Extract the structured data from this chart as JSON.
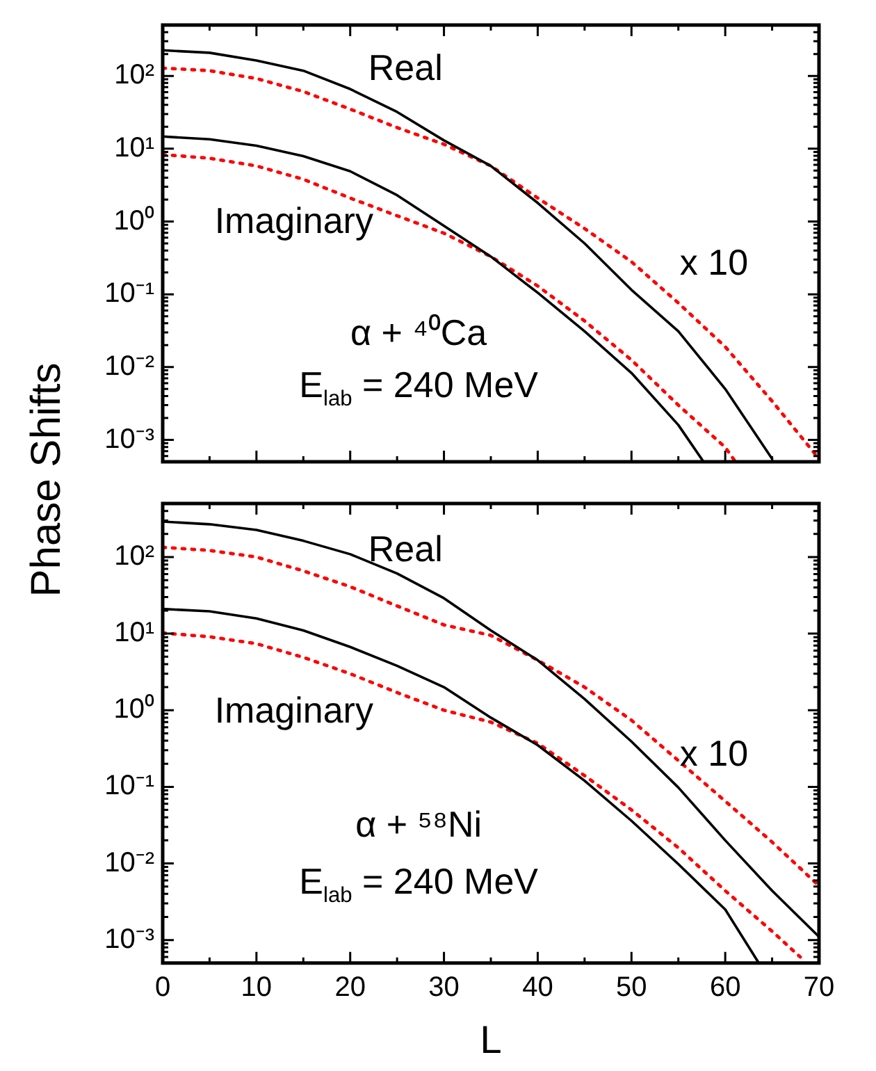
{
  "chart_data": [
    {
      "type": "line",
      "ylabel": "Phase Shifts",
      "log": "y",
      "grid": false,
      "tick_labels": "y",
      "xlim": [
        0,
        70
      ],
      "ylim": [
        0.0005,
        500
      ],
      "xticks": [
        0,
        {
          "value": 5,
          "label": null
        },
        10,
        {
          "value": 15,
          "label": null
        },
        20,
        {
          "value": 25,
          "label": null
        },
        30,
        {
          "value": 35,
          "label": null
        },
        40,
        {
          "value": 45,
          "label": null
        },
        50,
        {
          "value": 55,
          "label": null
        },
        60,
        {
          "value": 65,
          "label": null
        },
        70
      ],
      "yticks": [
        {
          "value": 0.0006,
          "label": null
        },
        {
          "value": 0.0007,
          "label": null
        },
        {
          "value": 0.0008,
          "label": null
        },
        {
          "value": 0.0009,
          "label": null
        },
        {
          "value": 0.001,
          "label": "10⁻³"
        },
        {
          "value": 0.002,
          "label": null
        },
        {
          "value": 0.003,
          "label": null
        },
        {
          "value": 0.004,
          "label": null
        },
        {
          "value": 0.005,
          "label": null
        },
        {
          "value": 0.006,
          "label": null
        },
        {
          "value": 0.007,
          "label": null
        },
        {
          "value": 0.008,
          "label": null
        },
        {
          "value": 0.009,
          "label": null
        },
        {
          "value": 0.01,
          "label": "10⁻²"
        },
        {
          "value": 0.02,
          "label": null
        },
        {
          "value": 0.03,
          "label": null
        },
        {
          "value": 0.04,
          "label": null
        },
        {
          "value": 0.05,
          "label": null
        },
        {
          "value": 0.06,
          "label": null
        },
        {
          "value": 0.07,
          "label": null
        },
        {
          "value": 0.08,
          "label": null
        },
        {
          "value": 0.09,
          "label": null
        },
        {
          "value": 0.1,
          "label": "10⁻¹"
        },
        {
          "value": 0.2,
          "label": null
        },
        {
          "value": 0.3,
          "label": null
        },
        {
          "value": 0.4,
          "label": null
        },
        {
          "value": 0.5,
          "label": null
        },
        {
          "value": 0.6,
          "label": null
        },
        {
          "value": 0.7,
          "label": null
        },
        {
          "value": 0.8,
          "label": null
        },
        {
          "value": 0.9,
          "label": null
        },
        {
          "value": 1,
          "label": "10⁰"
        },
        {
          "value": 2,
          "label": null
        },
        {
          "value": 3,
          "label": null
        },
        {
          "value": 4,
          "label": null
        },
        {
          "value": 5,
          "label": null
        },
        {
          "value": 6,
          "label": null
        },
        {
          "value": 7,
          "label": null
        },
        {
          "value": 8,
          "label": null
        },
        {
          "value": 9,
          "label": null
        },
        {
          "value": 10,
          "label": "10¹"
        },
        {
          "value": 20,
          "label": null
        },
        {
          "value": 30,
          "label": null
        },
        {
          "value": 40,
          "label": null
        },
        {
          "value": 50,
          "label": null
        },
        {
          "value": 60,
          "label": null
        },
        {
          "value": 70,
          "label": null
        },
        {
          "value": 80,
          "label": null
        },
        {
          "value": 90,
          "label": null
        },
        {
          "value": 100,
          "label": "10²"
        },
        {
          "value": 200,
          "label": null
        },
        {
          "value": 300,
          "label": null
        },
        {
          "value": 400,
          "label": null
        }
      ],
      "annotations": [
        "Real",
        "Imaginary",
        "x 10",
        "α + ⁴⁰Ca",
        "E$_{lab}$ = 240 MeV"
      ],
      "series": [
        {
          "color": "#000000",
          "line_style": "solid",
          "x": [
            0,
            5,
            10,
            15,
            20,
            25,
            30,
            35,
            40,
            45,
            50,
            55,
            60,
            65
          ],
          "values": [
            225,
            208,
            163,
            118,
            66,
            32,
            13,
            5.8,
            1.8,
            0.5,
            0.115,
            0.031,
            0.005,
            0.00055
          ]
        },
        {
          "color": "#ff0000",
          "line_style": "dotted",
          "x": [
            0,
            5,
            10,
            15,
            20,
            25,
            30,
            35,
            40,
            45,
            50,
            55,
            60,
            65,
            70
          ],
          "values": [
            128,
            118,
            92,
            61,
            35,
            19.5,
            11.5,
            5.8,
            2.1,
            0.8,
            0.28,
            0.076,
            0.019,
            0.0034,
            0.00055
          ]
        },
        {
          "color": "#000000",
          "line_style": "solid",
          "x": [
            0,
            5,
            10,
            15,
            20,
            25,
            30,
            35,
            40,
            45,
            50,
            55,
            57.6
          ],
          "values": [
            14.7,
            13.5,
            11,
            7.9,
            4.9,
            2.3,
            0.87,
            0.33,
            0.105,
            0.031,
            0.0083,
            0.0016,
            0.00052
          ]
        },
        {
          "color": "#ff0000",
          "line_style": "dotted",
          "x": [
            0,
            5,
            10,
            15,
            20,
            25,
            30,
            35,
            40,
            45,
            50,
            55,
            60,
            61
          ],
          "values": [
            8.3,
            7.4,
            5.8,
            3.8,
            2.1,
            1.2,
            0.69,
            0.33,
            0.13,
            0.043,
            0.0125,
            0.003,
            0.00079,
            0.00052
          ]
        }
      ]
    },
    {
      "type": "line",
      "xlabel": "L",
      "log": "y",
      "grid": false,
      "xlim": [
        0,
        70
      ],
      "ylim": [
        0.0005,
        500
      ],
      "xticks": [
        0,
        {
          "value": 5,
          "label": null
        },
        10,
        {
          "value": 15,
          "label": null
        },
        20,
        {
          "value": 25,
          "label": null
        },
        30,
        {
          "value": 35,
          "label": null
        },
        40,
        {
          "value": 45,
          "label": null
        },
        50,
        {
          "value": 55,
          "label": null
        },
        60,
        {
          "value": 65,
          "label": null
        },
        70
      ],
      "yticks": [
        {
          "value": 0.0006,
          "label": null
        },
        {
          "value": 0.0007,
          "label": null
        },
        {
          "value": 0.0008,
          "label": null
        },
        {
          "value": 0.0009,
          "label": null
        },
        {
          "value": 0.001,
          "label": "10⁻³"
        },
        {
          "value": 0.002,
          "label": null
        },
        {
          "value": 0.003,
          "label": null
        },
        {
          "value": 0.004,
          "label": null
        },
        {
          "value": 0.005,
          "label": null
        },
        {
          "value": 0.006,
          "label": null
        },
        {
          "value": 0.007,
          "label": null
        },
        {
          "value": 0.008,
          "label": null
        },
        {
          "value": 0.009,
          "label": null
        },
        {
          "value": 0.01,
          "label": "10⁻²"
        },
        {
          "value": 0.02,
          "label": null
        },
        {
          "value": 0.03,
          "label": null
        },
        {
          "value": 0.04,
          "label": null
        },
        {
          "value": 0.05,
          "label": null
        },
        {
          "value": 0.06,
          "label": null
        },
        {
          "value": 0.07,
          "label": null
        },
        {
          "value": 0.08,
          "label": null
        },
        {
          "value": 0.09,
          "label": null
        },
        {
          "value": 0.1,
          "label": "10⁻¹"
        },
        {
          "value": 0.2,
          "label": null
        },
        {
          "value": 0.3,
          "label": null
        },
        {
          "value": 0.4,
          "label": null
        },
        {
          "value": 0.5,
          "label": null
        },
        {
          "value": 0.6,
          "label": null
        },
        {
          "value": 0.7,
          "label": null
        },
        {
          "value": 0.8,
          "label": null
        },
        {
          "value": 0.9,
          "label": null
        },
        {
          "value": 1,
          "label": "10⁰"
        },
        {
          "value": 2,
          "label": null
        },
        {
          "value": 3,
          "label": null
        },
        {
          "value": 4,
          "label": null
        },
        {
          "value": 5,
          "label": null
        },
        {
          "value": 6,
          "label": null
        },
        {
          "value": 7,
          "label": null
        },
        {
          "value": 8,
          "label": null
        },
        {
          "value": 9,
          "label": null
        },
        {
          "value": 10,
          "label": "10¹"
        },
        {
          "value": 20,
          "label": null
        },
        {
          "value": 30,
          "label": null
        },
        {
          "value": 40,
          "label": null
        },
        {
          "value": 50,
          "label": null
        },
        {
          "value": 60,
          "label": null
        },
        {
          "value": 70,
          "label": null
        },
        {
          "value": 80,
          "label": null
        },
        {
          "value": 90,
          "label": null
        },
        {
          "value": 100,
          "label": "10²"
        },
        {
          "value": 200,
          "label": null
        },
        {
          "value": 300,
          "label": null
        },
        {
          "value": 400,
          "label": null
        }
      ],
      "annotations": [
        "Real",
        "Imaginary",
        "x 10",
        "α + ⁵⁸Ni",
        "E$_{lab}$ = 240 MeV"
      ],
      "series": [
        {
          "color": "#000000",
          "line_style": "solid",
          "x": [
            0,
            5,
            10,
            15,
            20,
            25,
            30,
            35,
            40,
            45,
            50,
            55,
            60,
            65,
            70
          ],
          "values": [
            290,
            268,
            226,
            163,
            109,
            61,
            29,
            11,
            4.5,
            1.4,
            0.39,
            0.098,
            0.02,
            0.0044,
            0.0011
          ]
        },
        {
          "color": "#ff0000",
          "line_style": "dotted",
          "x": [
            0,
            5,
            10,
            15,
            20,
            25,
            30,
            35,
            40,
            45,
            50,
            55,
            60,
            65,
            70
          ],
          "values": [
            134,
            122,
            100,
            66,
            41,
            23,
            13,
            9.5,
            4.5,
            2,
            0.74,
            0.22,
            0.065,
            0.019,
            0.0051
          ]
        },
        {
          "color": "#000000",
          "line_style": "solid",
          "x": [
            0,
            5,
            10,
            15,
            20,
            25,
            30,
            35,
            40,
            45,
            50,
            55,
            60,
            63.5
          ],
          "values": [
            21,
            19.6,
            15.8,
            11,
            6.7,
            3.8,
            2,
            0.8,
            0.35,
            0.12,
            0.036,
            0.0098,
            0.0025,
            0.00052
          ]
        },
        {
          "color": "#ff0000",
          "line_style": "dotted",
          "x": [
            0,
            5,
            10,
            15,
            20,
            25,
            30,
            35,
            40,
            45,
            50,
            55,
            60,
            65,
            68
          ],
          "values": [
            10.2,
            9.1,
            7.4,
            4.9,
            3,
            1.7,
            1,
            0.7,
            0.37,
            0.14,
            0.05,
            0.016,
            0.0044,
            0.0013,
            0.0006
          ]
        }
      ]
    }
  ]
}
